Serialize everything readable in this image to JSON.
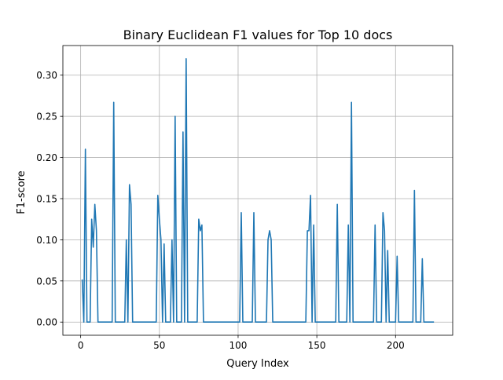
{
  "chart_data": {
    "type": "line",
    "title": "Binary Euclidean F1 values for Top 10 docs",
    "xlabel": "Query Index",
    "ylabel": "F1-score",
    "xlim": [
      -11.3,
      236.3
    ],
    "ylim": [
      -0.016,
      0.336
    ],
    "xticks": [
      0,
      50,
      100,
      150,
      200
    ],
    "xtick_labels": [
      "0",
      "50",
      "100",
      "150",
      "200"
    ],
    "yticks": [
      0.0,
      0.05,
      0.1,
      0.15,
      0.2,
      0.25,
      0.3
    ],
    "ytick_labels": [
      "0.00",
      "0.05",
      "0.10",
      "0.15",
      "0.20",
      "0.25",
      "0.30"
    ],
    "grid": true,
    "legend": null,
    "series": [
      {
        "color": "#1f77b4",
        "x": [
          1,
          2,
          3,
          4,
          5,
          6,
          7,
          8,
          9,
          10,
          11,
          12,
          19,
          20,
          21,
          22,
          27,
          28,
          29,
          30,
          31,
          32,
          33,
          48,
          49,
          50,
          51,
          52,
          53,
          54,
          57,
          58,
          59,
          60,
          61,
          62,
          64,
          65,
          66,
          67,
          68,
          69,
          74,
          75,
          76,
          77,
          78,
          101,
          102,
          103,
          109,
          110,
          111,
          118,
          119,
          120,
          121,
          122,
          123,
          143,
          144,
          145,
          146,
          147,
          148,
          149,
          162,
          163,
          164,
          169,
          170,
          171,
          172,
          173,
          186,
          187,
          188,
          191,
          192,
          193,
          194,
          195,
          196,
          199,
          200,
          201,
          202,
          210,
          211,
          212,
          213,
          215,
          216,
          217,
          218,
          224
        ],
        "y": [
          0.051,
          0,
          0.21,
          0,
          0,
          0,
          0.125,
          0.091,
          0.143,
          0.111,
          0,
          0,
          0,
          0,
          0.267,
          0,
          0,
          0,
          0.1,
          0,
          0.167,
          0.143,
          0,
          0,
          0.154,
          0.125,
          0.1,
          0,
          0.095,
          0,
          0,
          0.1,
          0,
          0.25,
          0,
          0,
          0,
          0.231,
          0,
          0.32,
          0,
          0,
          0,
          0.125,
          0.111,
          0.118,
          0,
          0,
          0.133,
          0,
          0,
          0.133,
          0,
          0,
          0.1,
          0.111,
          0.1,
          0,
          0,
          0,
          0.111,
          0.111,
          0.154,
          0,
          0.118,
          0,
          0,
          0.143,
          0,
          0,
          0.118,
          0,
          0.267,
          0,
          0,
          0.118,
          0,
          0,
          0.133,
          0.111,
          0,
          0.087,
          0,
          0,
          0,
          0.08,
          0,
          0,
          0,
          0.16,
          0,
          0,
          0,
          0.077,
          0,
          0
        ]
      }
    ]
  }
}
